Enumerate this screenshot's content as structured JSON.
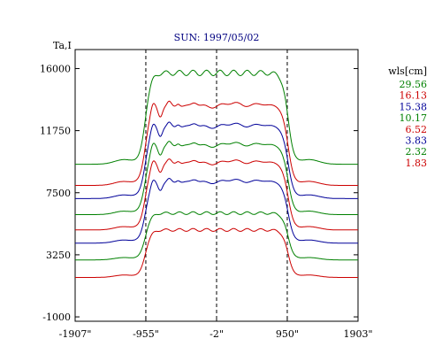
{
  "chart_data": {
    "type": "line",
    "title": "SUN: 1997/05/02",
    "ylabel": "Ta,I",
    "xlabel": "",
    "xlim": [
      -1907,
      1903
    ],
    "ylim": [
      -1300,
      17300
    ],
    "x_ticks": [
      {
        "value": -1907,
        "label": "-1907\""
      },
      {
        "value": -955,
        "label": "-955\""
      },
      {
        "value": -2,
        "label": "-2\""
      },
      {
        "value": 950,
        "label": "950\""
      },
      {
        "value": 1903,
        "label": "1903\""
      }
    ],
    "y_ticks": [
      {
        "value": 16000,
        "label": "16000"
      },
      {
        "value": 11750,
        "label": "11750"
      },
      {
        "value": 7500,
        "label": "7500"
      },
      {
        "value": 3250,
        "label": "3250"
      },
      {
        "value": -1000,
        "label": "-1000"
      }
    ],
    "limb_markers": [
      -955,
      -2,
      950
    ],
    "legend_title": "wls[cm]",
    "grid": false,
    "legend_position": "right",
    "series": [
      {
        "name": "29.56",
        "color": "#008000",
        "baseline": 9450,
        "plateau": 15700,
        "features": 0
      },
      {
        "name": "16.13",
        "color": "#cc0000",
        "baseline": 8000,
        "plateau": 13400,
        "features": 1
      },
      {
        "name": "15.38",
        "color": "#000099",
        "baseline": 7100,
        "plateau": 12000,
        "features": 1
      },
      {
        "name": "10.17",
        "color": "#008000",
        "baseline": 6000,
        "plateau": 10700,
        "features": 1
      },
      {
        "name": "6.52",
        "color": "#cc0000",
        "baseline": 4950,
        "plateau": 9500,
        "features": 1
      },
      {
        "name": "3.83",
        "color": "#000099",
        "baseline": 4050,
        "plateau": 8200,
        "features": 1
      },
      {
        "name": "2.32",
        "color": "#008000",
        "baseline": 2900,
        "plateau": 6100,
        "features": 0
      },
      {
        "name": "1.83",
        "color": "#cc0000",
        "baseline": 1700,
        "plateau": 4950,
        "features": 0
      }
    ]
  }
}
